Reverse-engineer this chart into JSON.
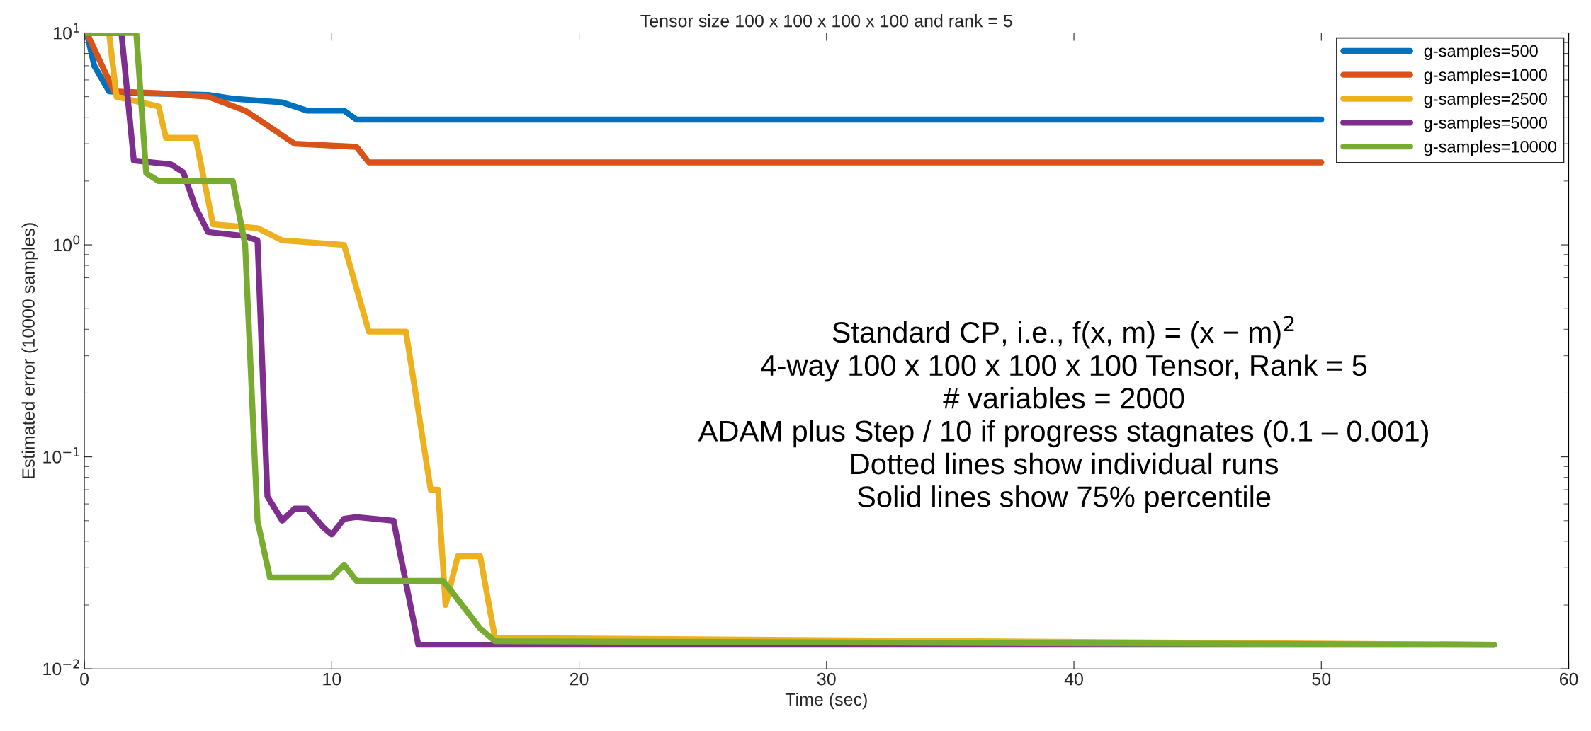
{
  "chart_data": {
    "type": "line",
    "title": "Tensor size 100 x 100 x 100 x 100 and rank = 5",
    "xlabel": "Time (sec)",
    "ylabel": "Estimated error (10000 samples)",
    "log": "y",
    "xlim": [
      0,
      60
    ],
    "xticks": [
      0,
      10,
      20,
      30,
      40,
      50,
      60
    ],
    "ylim": [
      0.01,
      10
    ],
    "yticks": [
      {
        "value": 0.01,
        "label": "10$^{−2}$"
      },
      {
        "value": 0.1,
        "label": "10$^{−1}$"
      },
      {
        "value": 1,
        "label": "10$^{0}$"
      },
      {
        "value": 10,
        "label": "10$^{1}$"
      }
    ],
    "legend": "top right",
    "line_style": "solid",
    "marker": "none",
    "series": [
      {
        "name": "g-samples=500",
        "color": "#0072bd",
        "x": [
          0.1,
          0.4,
          1.0,
          2,
          5,
          6,
          8,
          9,
          10.5,
          11,
          50
        ],
        "values": [
          10,
          7,
          5.3,
          5.2,
          5.1,
          4.9,
          4.7,
          4.3,
          4.3,
          3.9,
          3.9
        ]
      },
      {
        "name": "g-samples=1000",
        "color": "#d95319",
        "x": [
          0.1,
          1.2,
          3,
          5,
          6.5,
          7.5,
          8.5,
          11,
          11.5,
          50
        ],
        "values": [
          10,
          5.3,
          5.2,
          5.0,
          4.3,
          3.6,
          3.0,
          2.9,
          2.45,
          2.45
        ]
      },
      {
        "name": "g-samples=2500",
        "color": "#edb120",
        "x": [
          0.1,
          1,
          1.3,
          3,
          3.3,
          4.5,
          5.2,
          7,
          8,
          10.5,
          11.5,
          13,
          14,
          14.3,
          14.6,
          15.1,
          16,
          16.6,
          57
        ],
        "values": [
          10,
          10,
          5,
          4.5,
          3.2,
          3.2,
          1.25,
          1.2,
          1.05,
          1.0,
          0.39,
          0.39,
          0.07,
          0.07,
          0.02,
          0.034,
          0.034,
          0.014,
          0.013
        ]
      },
      {
        "name": "g-samples=5000",
        "color": "#7e2f8e",
        "x": [
          0.1,
          1.5,
          2,
          3.5,
          4,
          4.5,
          5,
          6.5,
          7,
          7.4,
          8,
          8.5,
          9,
          9.7,
          10,
          10.5,
          11,
          12.5,
          13.5,
          57
        ],
        "values": [
          10,
          10,
          2.5,
          2.4,
          2.2,
          1.5,
          1.15,
          1.1,
          1.05,
          0.065,
          0.05,
          0.057,
          0.057,
          0.046,
          0.043,
          0.051,
          0.052,
          0.05,
          0.013,
          0.013
        ]
      },
      {
        "name": "g-samples=10000",
        "color": "#77ac30",
        "x": [
          0.1,
          2.1,
          2.5,
          3,
          6,
          6.5,
          7.0,
          7.5,
          10,
          10.5,
          11,
          14.5,
          15,
          16,
          16.6,
          57
        ],
        "values": [
          10,
          10,
          2.18,
          2.0,
          2.0,
          1.0,
          0.05,
          0.027,
          0.027,
          0.031,
          0.026,
          0.026,
          0.022,
          0.0155,
          0.0135,
          0.013
        ]
      }
    ],
    "annotations": [
      "Standard CP, i.e., f(x, m) = (x − m)$^{2}$\n4-way 100 x 100 x 100 x 100 Tensor, Rank = 5\n# variables = 2000\nADAM plus Step / 10 if progress stagnates (0.1 – 0.001)\nDotted lines show individual runs\nSolid lines show 75% percentile"
    ]
  }
}
